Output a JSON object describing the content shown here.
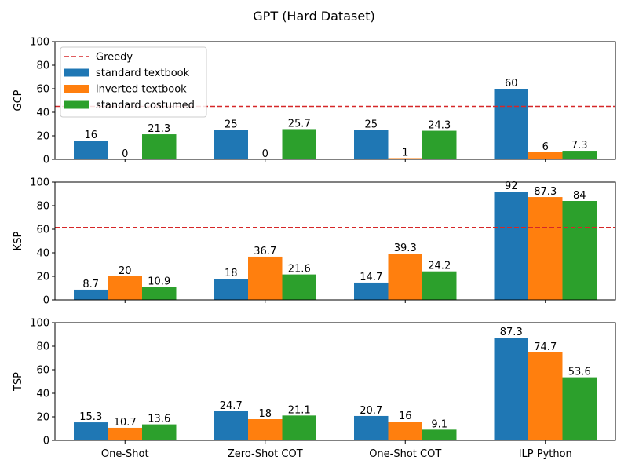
{
  "figure": {
    "title": "GPT (Hard Dataset)"
  },
  "legend": {
    "placement": "top-left",
    "entries": [
      {
        "label": "Greedy",
        "kind": "line",
        "color": "#d62728"
      },
      {
        "label": "standard textbook",
        "kind": "bar",
        "color": "#1f77b4"
      },
      {
        "label": "inverted textbook",
        "kind": "bar",
        "color": "#ff7f0e"
      },
      {
        "label": "standard costumed",
        "kind": "bar",
        "color": "#2ca02c"
      }
    ]
  },
  "chart_data": [
    {
      "type": "bar",
      "ylabel": "GCP",
      "ylim": [
        0,
        100
      ],
      "yticks": [
        "0",
        "20",
        "40",
        "60",
        "80",
        "100"
      ],
      "categories": [
        "One-Shot",
        "Zero-Shot COT",
        "One-Shot COT",
        "ILP Python"
      ],
      "show_xticks": false,
      "greedy": 45,
      "series": [
        {
          "name": "standard textbook",
          "color": "#1f77b4",
          "values": [
            16,
            25,
            25,
            60
          ],
          "labels": [
            "16",
            "25",
            "25",
            "60"
          ]
        },
        {
          "name": "inverted textbook",
          "color": "#ff7f0e",
          "values": [
            0,
            0,
            1,
            6
          ],
          "labels": [
            "0",
            "0",
            "1",
            "6"
          ]
        },
        {
          "name": "standard costumed",
          "color": "#2ca02c",
          "values": [
            21.3,
            25.7,
            24.3,
            7.3
          ],
          "labels": [
            "21.3",
            "25.7",
            "24.3",
            "7.3"
          ]
        }
      ]
    },
    {
      "type": "bar",
      "ylabel": "KSP",
      "ylim": [
        0,
        100
      ],
      "yticks": [
        "0",
        "20",
        "40",
        "60",
        "80",
        "100"
      ],
      "categories": [
        "One-Shot",
        "Zero-Shot COT",
        "One-Shot COT",
        "ILP Python"
      ],
      "show_xticks": false,
      "greedy": 61.5,
      "series": [
        {
          "name": "standard textbook",
          "color": "#1f77b4",
          "values": [
            8.7,
            18,
            14.7,
            92
          ],
          "labels": [
            "8.7",
            "18",
            "14.7",
            "92"
          ]
        },
        {
          "name": "inverted textbook",
          "color": "#ff7f0e",
          "values": [
            20,
            36.7,
            39.3,
            87.3
          ],
          "labels": [
            "20",
            "36.7",
            "39.3",
            "87.3"
          ]
        },
        {
          "name": "standard costumed",
          "color": "#2ca02c",
          "values": [
            10.9,
            21.6,
            24.2,
            84
          ],
          "labels": [
            "10.9",
            "21.6",
            "24.2",
            "84"
          ]
        }
      ]
    },
    {
      "type": "bar",
      "ylabel": "TSP",
      "ylim": [
        0,
        100
      ],
      "yticks": [
        "0",
        "20",
        "40",
        "60",
        "80",
        "100"
      ],
      "categories": [
        "One-Shot",
        "Zero-Shot COT",
        "One-Shot COT",
        "ILP Python"
      ],
      "show_xticks": true,
      "greedy": null,
      "series": [
        {
          "name": "standard textbook",
          "color": "#1f77b4",
          "values": [
            15.3,
            24.7,
            20.7,
            87.3
          ],
          "labels": [
            "15.3",
            "24.7",
            "20.7",
            "87.3"
          ]
        },
        {
          "name": "inverted textbook",
          "color": "#ff7f0e",
          "values": [
            10.7,
            18,
            16,
            74.7
          ],
          "labels": [
            "10.7",
            "18",
            "16",
            "74.7"
          ]
        },
        {
          "name": "standard costumed",
          "color": "#2ca02c",
          "values": [
            13.6,
            21.1,
            9.1,
            53.6
          ],
          "labels": [
            "13.6",
            "21.1",
            "9.1",
            "53.6"
          ]
        }
      ]
    }
  ]
}
